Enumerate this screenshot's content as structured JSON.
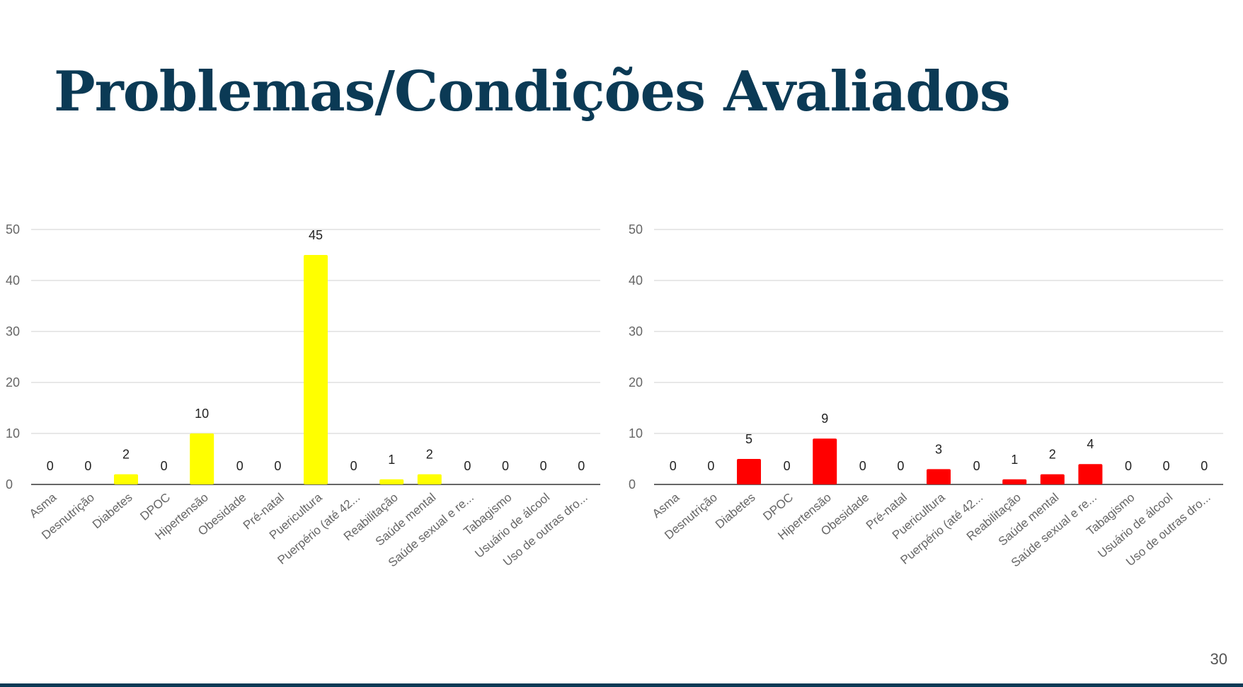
{
  "slide": {
    "title": "Problemas/Condições Avaliados",
    "page_number": "30"
  },
  "colors": {
    "title": "#0b3a55",
    "left_bars": "#ffff00",
    "right_bars": "#ff0000",
    "gridline": "#d9d9d9",
    "axis_text": "#666666"
  },
  "chart_data": [
    {
      "type": "bar",
      "color": "#ffff00",
      "categories": [
        "Asma",
        "Desnutrição",
        "Diabetes",
        "DPOC",
        "Hipertensão",
        "Obesidade",
        "Pré-natal",
        "Puericultura",
        "Puerpério (até 42...",
        "Reabilitação",
        "Saúde mental",
        "Saúde sexual e re...",
        "Tabagismo",
        "Usuário de álcool",
        "Uso de outras dro..."
      ],
      "values": [
        0,
        0,
        2,
        0,
        10,
        0,
        0,
        45,
        0,
        1,
        2,
        0,
        0,
        0,
        0
      ],
      "yticks": [
        "0",
        "10",
        "20",
        "30",
        "40",
        "50"
      ],
      "ylim": [
        0,
        50
      ],
      "grid": true,
      "legend": "none"
    },
    {
      "type": "bar",
      "color": "#ff0000",
      "categories": [
        "Asma",
        "Desnutrição",
        "Diabetes",
        "DPOC",
        "Hipertensão",
        "Obesidade",
        "Pré-natal",
        "Puericultura",
        "Puerpério (até 42...",
        "Reabilitação",
        "Saúde mental",
        "Saúde sexual e re...",
        "Tabagismo",
        "Usuário de álcool",
        "Uso de outras dro..."
      ],
      "values": [
        0,
        0,
        5,
        0,
        9,
        0,
        0,
        3,
        0,
        1,
        2,
        4,
        0,
        0,
        0
      ],
      "yticks": [
        "0",
        "10",
        "20",
        "30",
        "40",
        "50"
      ],
      "ylim": [
        0,
        50
      ],
      "grid": true,
      "legend": "none"
    }
  ]
}
